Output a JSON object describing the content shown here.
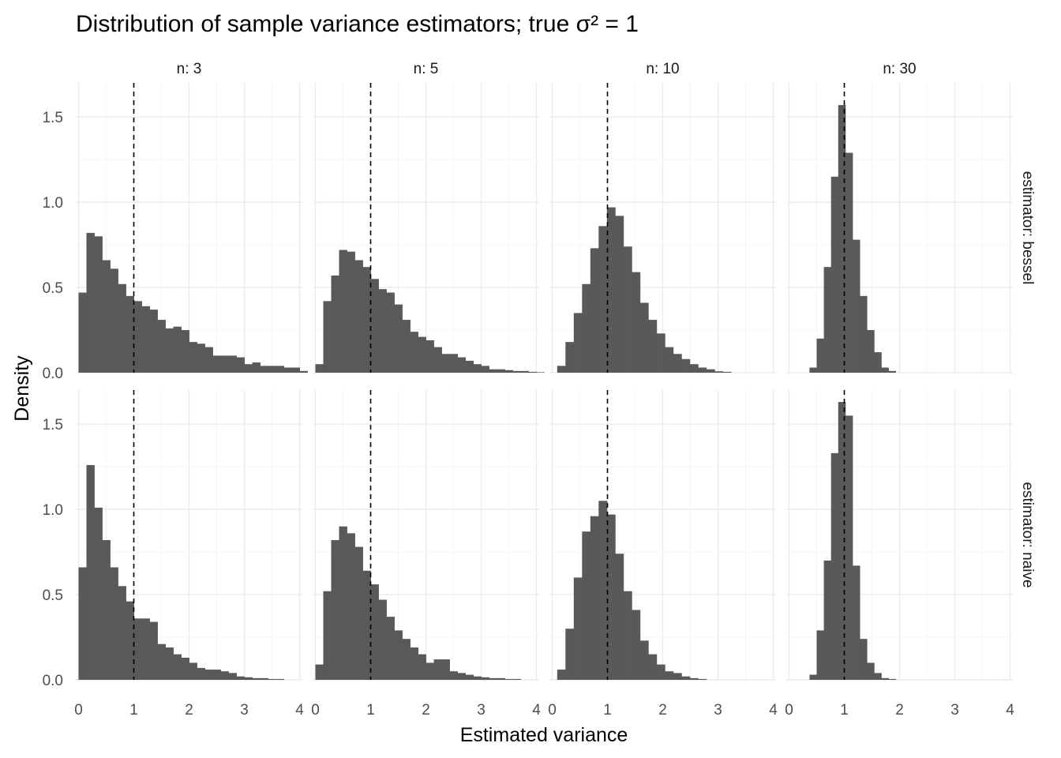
{
  "chart_data": {
    "type": "bar",
    "title": "Distribution of sample variance estimators; true σ² = 1",
    "xlabel": "Estimated variance",
    "ylabel": "Density",
    "xlim": [
      -0.05,
      4.05
    ],
    "ylim": [
      0,
      1.7
    ],
    "x_ticks": [
      "0",
      "1",
      "2",
      "3",
      "4"
    ],
    "y_ticks": [
      "0.0",
      "0.5",
      "1.0",
      "1.5"
    ],
    "reference_line": {
      "x": 1,
      "style": "dashed",
      "color": "#000000"
    },
    "bar_color": "#595959",
    "grid": true,
    "columns": [
      "n: 3",
      "n: 5",
      "n: 10",
      "n: 30"
    ],
    "rows": [
      "estimator: bessel",
      "estimator: naive"
    ],
    "panels": [
      {
        "row": "estimator: bessel",
        "col": "n: 3",
        "x_start": 0.0,
        "bin_width": 0.1429,
        "values": [
          0.47,
          0.82,
          0.8,
          0.66,
          0.61,
          0.52,
          0.45,
          0.42,
          0.39,
          0.37,
          0.31,
          0.26,
          0.27,
          0.25,
          0.18,
          0.17,
          0.15,
          0.1,
          0.1,
          0.1,
          0.09,
          0.05,
          0.06,
          0.04,
          0.04,
          0.04,
          0.03,
          0.03,
          0.01
        ]
      },
      {
        "row": "estimator: bessel",
        "col": "n: 5",
        "x_start": 0.0,
        "bin_width": 0.1429,
        "values": [
          0.05,
          0.42,
          0.57,
          0.72,
          0.71,
          0.66,
          0.62,
          0.55,
          0.49,
          0.47,
          0.4,
          0.31,
          0.24,
          0.21,
          0.19,
          0.15,
          0.11,
          0.11,
          0.09,
          0.07,
          0.05,
          0.04,
          0.02,
          0.02,
          0.015,
          0.01,
          0.01,
          0.005,
          0.003
        ]
      },
      {
        "row": "estimator: bessel",
        "col": "n: 10",
        "x_start": 0.09,
        "bin_width": 0.15,
        "values": [
          0.04,
          0.18,
          0.35,
          0.52,
          0.73,
          0.86,
          0.97,
          0.92,
          0.74,
          0.59,
          0.41,
          0.31,
          0.23,
          0.15,
          0.11,
          0.08,
          0.05,
          0.03,
          0.02,
          0.008,
          0.005
        ]
      },
      {
        "row": "estimator: bessel",
        "col": "n: 30",
        "x_start": 0.37,
        "bin_width": 0.13,
        "values": [
          0.03,
          0.2,
          0.62,
          1.15,
          1.57,
          1.29,
          0.78,
          0.45,
          0.25,
          0.12,
          0.03,
          0.01
        ]
      },
      {
        "row": "estimator: naive",
        "col": "n: 3",
        "x_start": 0.0,
        "bin_width": 0.1429,
        "values": [
          0.66,
          1.26,
          1.01,
          0.82,
          0.66,
          0.55,
          0.46,
          0.36,
          0.36,
          0.34,
          0.21,
          0.19,
          0.15,
          0.13,
          0.1,
          0.07,
          0.06,
          0.06,
          0.05,
          0.04,
          0.02,
          0.015,
          0.01,
          0.01,
          0.005,
          0.005
        ]
      },
      {
        "row": "estimator: naive",
        "col": "n: 5",
        "x_start": 0.0,
        "bin_width": 0.1429,
        "values": [
          0.09,
          0.52,
          0.82,
          0.9,
          0.86,
          0.78,
          0.64,
          0.56,
          0.47,
          0.37,
          0.29,
          0.24,
          0.19,
          0.15,
          0.1,
          0.12,
          0.12,
          0.05,
          0.04,
          0.03,
          0.02,
          0.015,
          0.01,
          0.01,
          0.005,
          0.005
        ]
      },
      {
        "row": "estimator: naive",
        "col": "n: 10",
        "x_start": 0.09,
        "bin_width": 0.15,
        "values": [
          0.06,
          0.3,
          0.6,
          0.87,
          0.96,
          1.05,
          0.97,
          0.74,
          0.52,
          0.41,
          0.23,
          0.15,
          0.09,
          0.05,
          0.04,
          0.02,
          0.01,
          0.005
        ]
      },
      {
        "row": "estimator: naive",
        "col": "n: 30",
        "x_start": 0.37,
        "bin_width": 0.13,
        "values": [
          0.03,
          0.29,
          0.7,
          1.33,
          1.63,
          1.55,
          0.67,
          0.24,
          0.1,
          0.04,
          0.01,
          0.005
        ]
      }
    ]
  }
}
